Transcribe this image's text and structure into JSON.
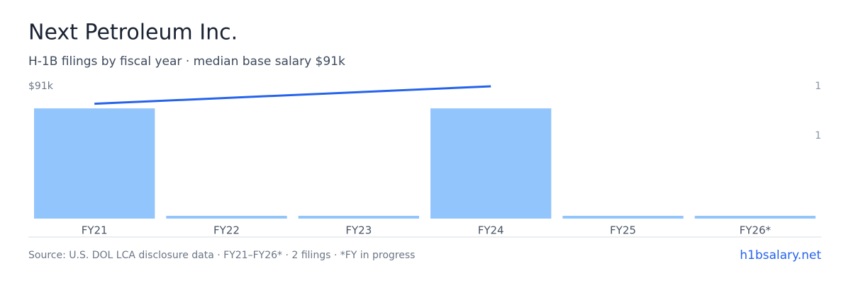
{
  "chart_data": {
    "type": "bar",
    "title": "Next Petroleum Inc.",
    "subtitle": "H-1B filings by fiscal year · median base salary $91k",
    "categories": [
      "FY21",
      "FY22",
      "FY23",
      "FY24",
      "FY25",
      "FY26*"
    ],
    "series": [
      {
        "name": "H-1B filings",
        "type": "bar",
        "color": "#93c5fd",
        "values": [
          1,
          0,
          0,
          1,
          0,
          0
        ]
      },
      {
        "name": "Median base salary",
        "type": "line",
        "axis": "y2",
        "color": "#2563eb",
        "x": [
          "FY21",
          "FY24"
        ],
        "values": [
          79000,
          91000
        ]
      }
    ],
    "ylim": [
      0,
      1.2
    ],
    "yticks": [
      {
        "value": 1.2,
        "label": "1"
      },
      {
        "value": 0.75,
        "label": "1"
      }
    ],
    "y2lim": [
      0,
      91000
    ],
    "y2ticks": [
      {
        "value": 91000,
        "label": "$91k"
      }
    ],
    "source": "Source: U.S. DOL LCA disclosure data · FY21–FY26* · 2 filings · *FY in progress",
    "site": "h1bsalary.net"
  }
}
